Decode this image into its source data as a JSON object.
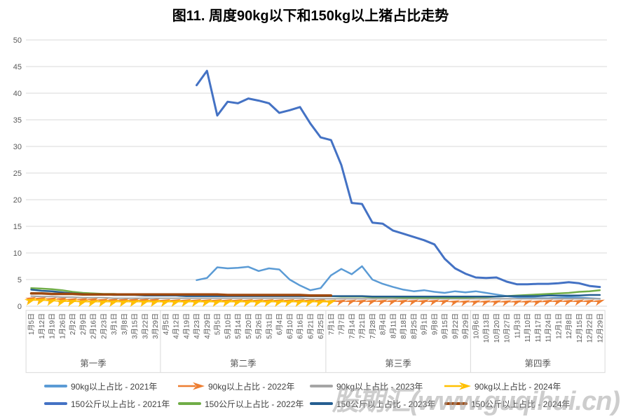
{
  "title": "图11. 周度90kg以下和150kg以上猪占比走势",
  "watermark": "股期汇(www.guqihui.cn)",
  "chart_data": {
    "type": "line",
    "title": "图11. 周度90kg以下和150kg以上猪占比走势",
    "xlabel": "",
    "ylabel": "",
    "ylim": [
      0,
      50
    ],
    "yticks": [
      0,
      5,
      10,
      15,
      20,
      25,
      30,
      35,
      40,
      45,
      50
    ],
    "grid": true,
    "legend_position": "bottom",
    "quarters": [
      {
        "label": "第一季",
        "weeks": 13
      },
      {
        "label": "第二季",
        "weeks": 16
      },
      {
        "label": "第三季",
        "weeks": 14
      },
      {
        "label": "第四季",
        "weeks": 13
      }
    ],
    "categories": [
      "1月5日",
      "1月12日",
      "1月19日",
      "1月26日",
      "2月2日",
      "2月9日",
      "2月16日",
      "2月23日",
      "3月1日",
      "3月8日",
      "3月15日",
      "3月22日",
      "3月29日",
      "4月5日",
      "4月12日",
      "4月19日",
      "4月23日",
      "4月29日",
      "5月5日",
      "5月10日",
      "5月14日",
      "5月20日",
      "5月26日",
      "5月31日",
      "6月4日",
      "6月10日",
      "6月16日",
      "6月21日",
      "6月25日",
      "7月1日",
      "7月7日",
      "7月14日",
      "7月21日",
      "7月28日",
      "8月4日",
      "8月11日",
      "8月18日",
      "8月25日",
      "9月1日",
      "9月8日",
      "9月15日",
      "9月22日",
      "9月29日",
      "10月6日",
      "10月13日",
      "10月20日",
      "10月27日",
      "11月3日",
      "11月10日",
      "11月17日",
      "11月24日",
      "12月1日",
      "12月8日",
      "12月15日",
      "12月22日",
      "12月29日"
    ],
    "series": [
      {
        "name": "90kg以上占比 - 2021年",
        "color": "#5B9BD5",
        "marker": "none",
        "width": 2.5,
        "values": [
          null,
          null,
          null,
          null,
          null,
          null,
          null,
          null,
          null,
          null,
          null,
          null,
          null,
          null,
          null,
          null,
          4.9,
          5.3,
          7.3,
          7.1,
          7.2,
          7.4,
          6.6,
          7.1,
          6.9,
          5.0,
          3.9,
          3.0,
          3.4,
          5.8,
          7.0,
          6.0,
          7.5,
          5.0,
          4.2,
          3.6,
          3.1,
          2.8,
          3.0,
          2.7,
          2.5,
          2.8,
          2.6,
          2.8,
          2.5,
          2.2,
          1.9,
          1.7,
          1.6,
          1.5,
          1.5,
          1.6,
          1.7,
          1.6,
          1.5,
          1.4
        ]
      },
      {
        "name": "90kg以上占比 - 2022年",
        "color": "#ED7D31",
        "marker": "arrow",
        "marker_scale": 1,
        "width": 1.25,
        "values": [
          1.4,
          1.4,
          1.3,
          1.3,
          1.2,
          1.2,
          1.2,
          1.1,
          1.1,
          1.1,
          1.1,
          1.1,
          1.1,
          1.0,
          1.0,
          1.0,
          1.0,
          1.0,
          1.0,
          1.0,
          1.0,
          1.0,
          1.0,
          1.0,
          1.0,
          1.0,
          1.0,
          1.0,
          1.0,
          0.9,
          0.9,
          0.9,
          0.9,
          0.9,
          0.9,
          0.9,
          0.9,
          0.9,
          0.9,
          0.9,
          0.9,
          0.8,
          0.8,
          0.8,
          0.8,
          0.8,
          0.8,
          0.8,
          0.8,
          0.8,
          0.9,
          0.9,
          0.9,
          0.9,
          0.9,
          0.9
        ]
      },
      {
        "name": "90kg以上占比 - 2023年",
        "color": "#A5A5A5",
        "marker": "none",
        "width": 2,
        "values": [
          1.9,
          1.8,
          1.8,
          1.7,
          1.7,
          1.6,
          1.6,
          1.6,
          1.5,
          1.5,
          1.5,
          1.5,
          1.5,
          1.5,
          1.5,
          1.5,
          1.5,
          1.5,
          1.5,
          1.5,
          1.5,
          1.5,
          1.5,
          1.5,
          1.5,
          1.5,
          1.5,
          1.4,
          1.4,
          1.4,
          1.4,
          1.4,
          1.4,
          1.4,
          1.4,
          1.4,
          1.4,
          1.4,
          1.4,
          1.4,
          1.4,
          1.4,
          1.4,
          1.4,
          1.4,
          1.4,
          1.4,
          1.4,
          1.4,
          1.4,
          1.4,
          1.4,
          1.4,
          1.4,
          1.4,
          1.4
        ]
      },
      {
        "name": "90kg以上占比 - 2024年",
        "color": "#FFC000",
        "marker": "arrow",
        "marker_scale": 1.15,
        "width": 1.25,
        "values": [
          1.1,
          1.1,
          1.0,
          0.9,
          0.9,
          0.8,
          0.8,
          0.8,
          0.8,
          0.8,
          0.8,
          0.8,
          0.8,
          0.8,
          0.8,
          0.8,
          0.8,
          0.8,
          0.8,
          0.8,
          0.8,
          0.8,
          0.8,
          0.8,
          0.8,
          0.8,
          0.8,
          0.8,
          0.8,
          0.8,
          null,
          null,
          null,
          null,
          null,
          null,
          null,
          null,
          null,
          null,
          null,
          null,
          null,
          null,
          null,
          null,
          null,
          null,
          null,
          null,
          null,
          null,
          null,
          null,
          null,
          null
        ]
      },
      {
        "name": "150公斤以上占比 - 2021年",
        "color": "#4472C4",
        "marker": "none",
        "width": 3,
        "values": [
          null,
          null,
          null,
          null,
          null,
          null,
          null,
          null,
          null,
          null,
          null,
          null,
          null,
          null,
          null,
          null,
          41.5,
          44.2,
          35.8,
          38.4,
          38.1,
          39.0,
          38.6,
          38.1,
          36.3,
          36.8,
          37.4,
          34.3,
          31.7,
          31.2,
          26.5,
          19.4,
          19.2,
          15.7,
          15.5,
          14.2,
          13.6,
          13.0,
          12.4,
          11.6,
          8.9,
          7.1,
          6.1,
          5.4,
          5.3,
          5.4,
          4.6,
          4.1,
          4.1,
          4.2,
          4.2,
          4.3,
          4.5,
          4.3,
          3.8,
          3.6
        ]
      },
      {
        "name": "150公斤以上占比 - 2022年",
        "color": "#70AD47",
        "marker": "none",
        "width": 2.5,
        "values": [
          3.4,
          3.3,
          3.2,
          3.0,
          2.7,
          2.5,
          2.4,
          2.3,
          2.3,
          2.2,
          2.2,
          2.2,
          2.2,
          2.1,
          2.1,
          2.1,
          2.1,
          2.1,
          2.1,
          2.0,
          2.0,
          2.0,
          2.0,
          2.0,
          2.0,
          2.0,
          2.0,
          1.9,
          1.9,
          1.9,
          1.8,
          1.8,
          1.8,
          1.7,
          1.7,
          1.7,
          1.6,
          1.6,
          1.6,
          1.6,
          1.6,
          1.6,
          1.6,
          1.7,
          1.7,
          1.8,
          1.9,
          2.0,
          2.1,
          2.2,
          2.3,
          2.4,
          2.5,
          2.7,
          2.8,
          3.0
        ]
      },
      {
        "name": "150公斤以上占比 - 2023年",
        "color": "#255E91",
        "marker": "none",
        "width": 2.5,
        "values": [
          3.1,
          2.9,
          2.8,
          2.6,
          2.4,
          2.3,
          2.2,
          2.2,
          2.1,
          2.1,
          2.1,
          2.0,
          2.0,
          2.0,
          2.0,
          1.9,
          1.9,
          1.9,
          1.9,
          1.9,
          1.9,
          1.9,
          1.9,
          1.9,
          1.9,
          1.9,
          1.9,
          1.9,
          1.9,
          1.9,
          1.9,
          1.9,
          1.9,
          1.8,
          1.8,
          1.8,
          1.8,
          1.8,
          1.8,
          1.8,
          1.8,
          1.8,
          1.8,
          1.8,
          1.8,
          1.8,
          1.9,
          1.9,
          1.9,
          1.9,
          2.0,
          2.0,
          2.0,
          2.0,
          2.1,
          2.1
        ]
      },
      {
        "name": "150公斤以上占比 - 2024年",
        "color": "#9E480E",
        "marker": "none",
        "width": 3.5,
        "values": [
          2.4,
          2.4,
          2.3,
          2.3,
          2.3,
          2.2,
          2.2,
          2.2,
          2.2,
          2.2,
          2.2,
          2.2,
          2.2,
          2.2,
          2.2,
          2.2,
          2.2,
          2.2,
          2.2,
          2.1,
          2.1,
          2.1,
          2.1,
          2.1,
          2.1,
          2.1,
          2.1,
          2.0,
          2.0,
          2.0,
          null,
          null,
          null,
          null,
          null,
          null,
          null,
          null,
          null,
          null,
          null,
          null,
          null,
          null,
          null,
          null,
          null,
          null,
          null,
          null,
          null,
          null,
          null,
          null,
          null,
          null
        ]
      }
    ]
  }
}
